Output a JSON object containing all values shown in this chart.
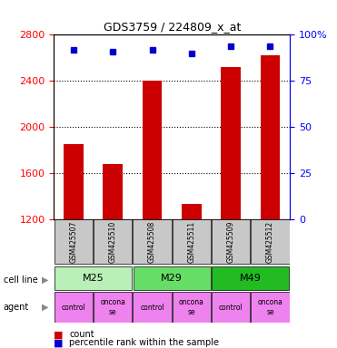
{
  "title": "GDS3759 / 224809_x_at",
  "samples": [
    "GSM425507",
    "GSM425510",
    "GSM425508",
    "GSM425511",
    "GSM425509",
    "GSM425512"
  ],
  "counts": [
    1850,
    1680,
    2400,
    1330,
    2520,
    2620
  ],
  "percentile_ranks": [
    92,
    91,
    92,
    90,
    94,
    94
  ],
  "cell_lines": [
    {
      "label": "M25",
      "start": 0,
      "end": 2,
      "color": "#b8f0b8"
    },
    {
      "label": "M29",
      "start": 2,
      "end": 4,
      "color": "#66dd66"
    },
    {
      "label": "M49",
      "start": 4,
      "end": 6,
      "color": "#22bb22"
    }
  ],
  "agent_labels": [
    "control",
    "oncona\nse",
    "control",
    "oncona\nse",
    "control",
    "oncona\nse"
  ],
  "agent_color": "#ee82ee",
  "sample_box_color": "#c8c8c8",
  "ylim_left": [
    1200,
    2800
  ],
  "ylim_right": [
    0,
    100
  ],
  "yticks_left": [
    1200,
    1600,
    2000,
    2400,
    2800
  ],
  "yticks_right": [
    0,
    25,
    50,
    75,
    100
  ],
  "bar_color": "#cc0000",
  "dot_color": "#0000cc",
  "bar_width": 0.5
}
